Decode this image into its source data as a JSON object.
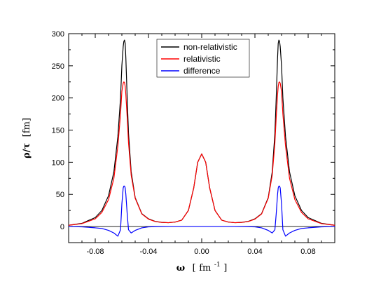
{
  "chart_data": {
    "type": "line",
    "xlabel": "ω",
    "xlabel_unit": "fm",
    "xlabel_unit_exp": "-1",
    "ylabel": "ρ/τ",
    "ylabel_unit": "[fm]",
    "xlim": [
      -0.1,
      0.1
    ],
    "ylim": [
      -25,
      300
    ],
    "xticks": [
      -0.08,
      -0.04,
      0.0,
      0.04,
      0.08
    ],
    "xtick_labels": [
      "-0.08",
      "-0.04",
      "0.00",
      "0.04",
      "0.08"
    ],
    "yticks": [
      0,
      50,
      100,
      150,
      200,
      250,
      300
    ],
    "ytick_labels": [
      "0",
      "50",
      "100",
      "150",
      "200",
      "250",
      "300"
    ],
    "grid": false,
    "legend_position": "top-center",
    "zero_line": true,
    "x": [
      -0.1,
      -0.09,
      -0.08,
      -0.075,
      -0.07,
      -0.066,
      -0.063,
      -0.061,
      -0.06,
      -0.059,
      -0.0585,
      -0.058,
      -0.0575,
      -0.057,
      -0.056,
      -0.055,
      -0.053,
      -0.05,
      -0.045,
      -0.04,
      -0.035,
      -0.03,
      -0.025,
      -0.02,
      -0.015,
      -0.01,
      -0.006,
      -0.003,
      0.0,
      0.003,
      0.006,
      0.01,
      0.015,
      0.02,
      0.025,
      0.03,
      0.035,
      0.04,
      0.045,
      0.05,
      0.053,
      0.055,
      0.056,
      0.057,
      0.0575,
      0.058,
      0.0585,
      0.059,
      0.06,
      0.061,
      0.063,
      0.066,
      0.07,
      0.075,
      0.08,
      0.09,
      0.1
    ],
    "series": [
      {
        "name": "non-relativistic",
        "color": "#000000",
        "values": [
          2,
          5,
          14,
          25,
          48,
          85,
          140,
          200,
          250,
          280,
          288,
          290,
          285,
          262,
          200,
          145,
          85,
          45,
          20,
          12,
          8,
          6.5,
          6,
          7,
          10,
          25,
          60,
          100,
          113,
          100,
          60,
          25,
          10,
          7,
          6,
          6.5,
          8,
          12,
          20,
          45,
          85,
          145,
          200,
          262,
          285,
          290,
          288,
          280,
          250,
          200,
          140,
          85,
          48,
          25,
          14,
          5,
          2
        ]
      },
      {
        "name": "relativistic",
        "color": "#ff0000",
        "values": [
          2,
          4.5,
          12,
          22,
          42,
          75,
          125,
          175,
          210,
          223,
          225,
          224,
          218,
          205,
          170,
          130,
          80,
          44,
          19.5,
          11.5,
          7.8,
          6.4,
          6,
          7,
          10,
          25,
          60,
          100,
          113,
          100,
          60,
          25,
          10,
          7,
          6,
          6.4,
          7.8,
          11.5,
          19.5,
          44,
          80,
          130,
          170,
          205,
          218,
          224,
          225,
          223,
          210,
          175,
          125,
          75,
          42,
          22,
          12,
          4.5,
          2
        ]
      },
      {
        "name": "difference",
        "color": "#0000ff",
        "values": [
          0,
          -0.5,
          -2,
          -3,
          -6,
          -10,
          -15,
          -5,
          35,
          60,
          63,
          63,
          60,
          50,
          20,
          -5,
          -10,
          -6,
          -2,
          -0.5,
          -0.2,
          -0.1,
          0,
          0,
          0,
          0,
          0,
          0,
          0,
          0,
          0,
          0,
          0,
          0,
          0,
          -0.1,
          -0.2,
          -0.5,
          -2,
          -6,
          -10,
          -5,
          20,
          50,
          60,
          63,
          63,
          60,
          35,
          -5,
          -15,
          -10,
          -6,
          -3,
          -2,
          -0.5,
          0
        ]
      }
    ]
  }
}
